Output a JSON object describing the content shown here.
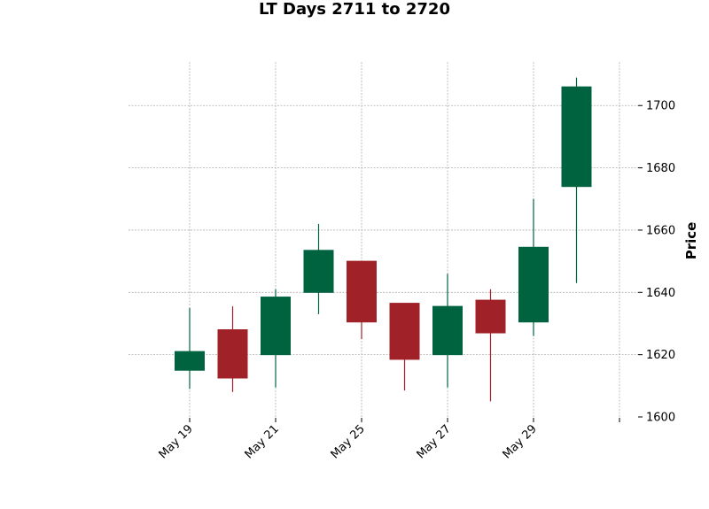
{
  "chart_data": {
    "type": "candlestick",
    "title": "LT Days 2711 to 2720",
    "xlabel": "",
    "ylabel": "Price",
    "ylim": [
      1600,
      1714
    ],
    "y_ticks": [
      1600,
      1620,
      1640,
      1660,
      1680,
      1700
    ],
    "x_tick_labels": [
      "May 19",
      "May 21",
      "May 25",
      "May 27",
      "May 29",
      ""
    ],
    "grid": true,
    "y_axis_position": "right",
    "up_color": "#006340",
    "down_color": "#a02128",
    "candles": [
      {
        "open": 1615,
        "high": 1635,
        "low": 1609,
        "close": 1621
      },
      {
        "open": 1628,
        "high": 1635.5,
        "low": 1608,
        "close": 1612.5
      },
      {
        "open": 1620,
        "high": 1641,
        "low": 1609.5,
        "close": 1638.5
      },
      {
        "open": 1640,
        "high": 1662,
        "low": 1633,
        "close": 1653.5
      },
      {
        "open": 1650,
        "high": 1650,
        "low": 1625,
        "close": 1630.5
      },
      {
        "open": 1636.5,
        "high": 1636.5,
        "low": 1608.5,
        "close": 1618.5
      },
      {
        "open": 1620,
        "high": 1646,
        "low": 1609.5,
        "close": 1635.5
      },
      {
        "open": 1637.5,
        "high": 1641,
        "low": 1605,
        "close": 1627
      },
      {
        "open": 1630.5,
        "high": 1670,
        "low": 1626,
        "close": 1654.5
      },
      {
        "open": 1674,
        "high": 1709,
        "low": 1643,
        "close": 1706
      }
    ]
  }
}
